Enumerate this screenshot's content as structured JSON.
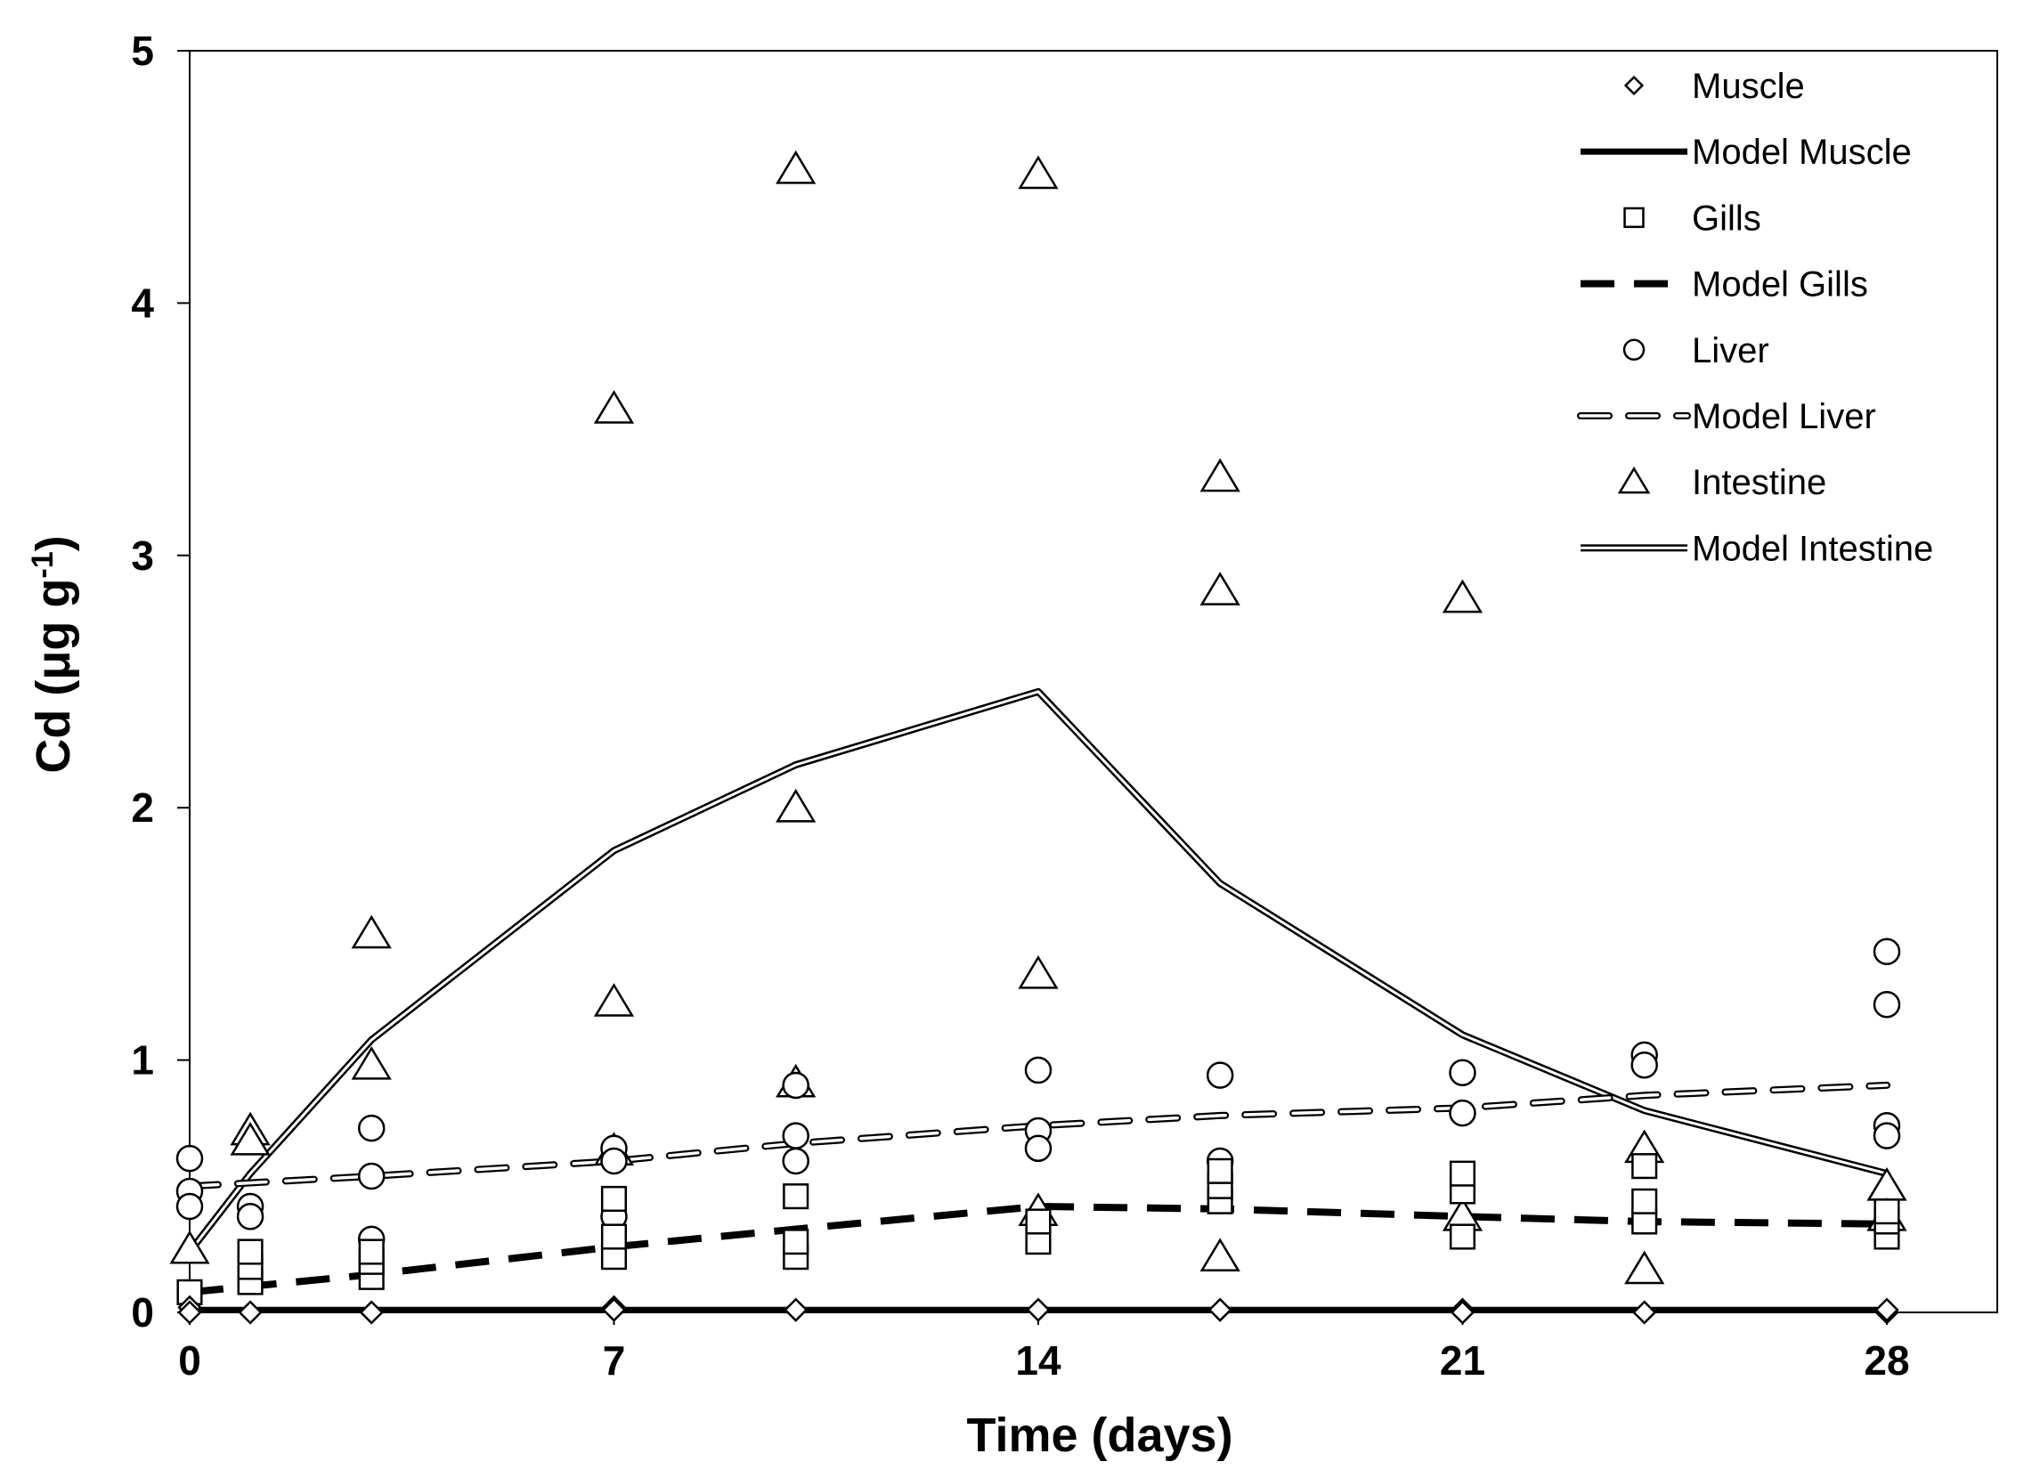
{
  "chart_data": {
    "type": "scatter",
    "title": "",
    "xlabel": "Time (days)",
    "ylabel_main": "Cd (μg g",
    "ylabel_sup": "-1",
    "ylabel_close": ")",
    "xlim": [
      0,
      30
    ],
    "ylim": [
      0,
      5
    ],
    "xticks": [
      0,
      7,
      14,
      21,
      28
    ],
    "xtick_labels": [
      "0",
      "7",
      "14",
      "21",
      "28"
    ],
    "yticks": [
      0,
      1,
      2,
      3,
      4,
      5
    ],
    "ytick_labels": [
      "0",
      "1",
      "2",
      "3",
      "4",
      "5"
    ],
    "grid": false,
    "legend_position": "top-right",
    "series": [
      {
        "name": "Muscle",
        "kind": "points",
        "marker": "diamond",
        "x": [
          0,
          0,
          1,
          3,
          7,
          7,
          10,
          14,
          17,
          21,
          21,
          24,
          28,
          28
        ],
        "y": [
          0.02,
          0.0,
          0.0,
          0.0,
          0.02,
          0.01,
          0.01,
          0.01,
          0.01,
          0.01,
          0.0,
          0.0,
          0.0,
          0.01
        ]
      },
      {
        "name": "Model Muscle",
        "kind": "line",
        "style": "solid-thick",
        "x": [
          0,
          28
        ],
        "y": [
          0.01,
          0.01
        ]
      },
      {
        "name": "Gills",
        "kind": "points",
        "marker": "square",
        "x": [
          0,
          1,
          1,
          1,
          3,
          3,
          3,
          7,
          7,
          7,
          10,
          10,
          10,
          14,
          14,
          17,
          17,
          17,
          21,
          21,
          21,
          24,
          24,
          24,
          28,
          28,
          28
        ],
        "y": [
          0.08,
          0.12,
          0.18,
          0.24,
          0.14,
          0.2,
          0.24,
          0.22,
          0.3,
          0.45,
          0.22,
          0.28,
          0.46,
          0.28,
          0.36,
          0.44,
          0.5,
          0.56,
          0.3,
          0.48,
          0.55,
          0.36,
          0.44,
          0.58,
          0.3,
          0.36,
          0.4
        ]
      },
      {
        "name": "Model Gills",
        "kind": "line",
        "style": "dashed-thick",
        "x": [
          0,
          3,
          7,
          10,
          14,
          17,
          21,
          24,
          28
        ],
        "y": [
          0.08,
          0.15,
          0.26,
          0.33,
          0.42,
          0.41,
          0.38,
          0.36,
          0.35
        ]
      },
      {
        "name": "Liver",
        "kind": "points",
        "marker": "circle",
        "x": [
          0,
          0,
          0,
          1,
          1,
          3,
          3,
          3,
          7,
          7,
          7,
          10,
          10,
          10,
          14,
          14,
          14,
          17,
          17,
          21,
          21,
          24,
          24,
          28,
          28,
          28,
          28
        ],
        "y": [
          0.61,
          0.48,
          0.42,
          0.42,
          0.38,
          0.73,
          0.54,
          0.29,
          0.65,
          0.6,
          0.38,
          0.9,
          0.7,
          0.6,
          0.96,
          0.72,
          0.65,
          0.94,
          0.6,
          0.95,
          0.79,
          1.02,
          0.98,
          1.43,
          1.22,
          0.74,
          0.7
        ]
      },
      {
        "name": "Model Liver",
        "kind": "line",
        "style": "dashed-hollow",
        "x": [
          0,
          3,
          7,
          10,
          14,
          17,
          21,
          24,
          28
        ],
        "y": [
          0.5,
          0.54,
          0.6,
          0.67,
          0.74,
          0.78,
          0.81,
          0.86,
          0.9
        ]
      },
      {
        "name": "Intestine",
        "kind": "points",
        "marker": "triangle",
        "x": [
          0,
          1,
          1,
          3,
          3,
          7,
          7,
          7,
          10,
          10,
          10,
          14,
          14,
          14,
          17,
          17,
          17,
          21,
          21,
          24,
          24,
          28,
          28
        ],
        "y": [
          0.25,
          0.72,
          0.68,
          1.5,
          0.98,
          3.58,
          1.23,
          0.64,
          4.53,
          2.0,
          0.91,
          4.51,
          1.34,
          0.4,
          3.31,
          2.86,
          0.22,
          2.83,
          0.38,
          0.65,
          0.17,
          0.5,
          0.38
        ]
      },
      {
        "name": "Model Intestine",
        "kind": "line",
        "style": "double",
        "x": [
          0,
          1,
          3,
          7,
          10,
          14,
          17,
          21,
          24,
          28
        ],
        "y": [
          0.24,
          0.55,
          1.08,
          1.83,
          2.17,
          2.46,
          1.7,
          1.1,
          0.8,
          0.55
        ]
      }
    ]
  }
}
